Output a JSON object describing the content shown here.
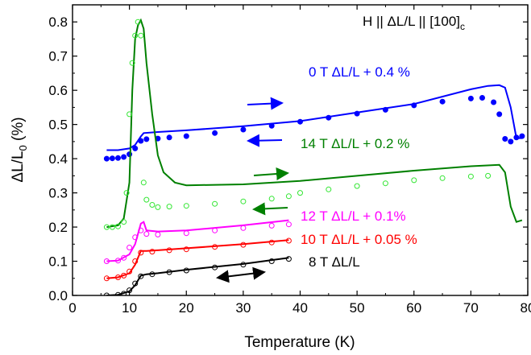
{
  "chart_data": {
    "type": "scatter",
    "xlabel": "Temperature (K)",
    "ylabel": "ΔL/L",
    "ylabel_sub": "0",
    "ylabel_unit": " (%)",
    "xlim": [
      0,
      80
    ],
    "ylim": [
      0.0,
      0.85
    ],
    "x_ticks": [
      "0",
      "10",
      "20",
      "30",
      "40",
      "50",
      "60",
      "70",
      "80"
    ],
    "y_ticks": [
      "0.0",
      "0.1",
      "0.2",
      "0.3",
      "0.4",
      "0.5",
      "0.6",
      "0.7",
      "0.8"
    ],
    "x_tick_values": [
      0,
      10,
      20,
      30,
      40,
      50,
      60,
      70,
      80
    ],
    "y_tick_values": [
      0.0,
      0.1,
      0.2,
      0.3,
      0.4,
      0.5,
      0.6,
      0.7,
      0.8
    ],
    "grid": false,
    "title_annotation": {
      "text": "H || ΔL/L || [100]",
      "sub": "c"
    },
    "series": [
      {
        "name": "0 T  ΔL/L + 0.4 %",
        "color": "#0000ff",
        "line": [
          [
            6,
            0.425
          ],
          [
            8,
            0.425
          ],
          [
            10,
            0.43
          ],
          [
            11,
            0.44
          ],
          [
            12,
            0.465
          ],
          [
            12.5,
            0.475
          ],
          [
            15,
            0.478
          ],
          [
            20,
            0.483
          ],
          [
            30,
            0.495
          ],
          [
            40,
            0.51
          ],
          [
            50,
            0.535
          ],
          [
            60,
            0.56
          ],
          [
            70,
            0.603
          ],
          [
            73,
            0.613
          ],
          [
            75,
            0.615
          ],
          [
            76,
            0.608
          ],
          [
            77,
            0.55
          ],
          [
            78,
            0.46
          ],
          [
            79,
            0.46
          ]
        ],
        "points": [
          [
            6,
            0.4
          ],
          [
            7,
            0.401
          ],
          [
            8,
            0.402
          ],
          [
            9,
            0.405
          ],
          [
            10,
            0.413
          ],
          [
            11,
            0.43
          ],
          [
            12,
            0.452
          ],
          [
            13,
            0.457
          ],
          [
            15,
            0.459
          ],
          [
            17,
            0.462
          ],
          [
            20,
            0.466
          ],
          [
            25,
            0.475
          ],
          [
            30,
            0.485
          ],
          [
            35,
            0.496
          ],
          [
            40,
            0.508
          ],
          [
            45,
            0.52
          ],
          [
            50,
            0.532
          ],
          [
            55,
            0.543
          ],
          [
            60,
            0.556
          ],
          [
            65,
            0.567
          ],
          [
            70,
            0.576
          ],
          [
            72,
            0.578
          ],
          [
            74,
            0.565
          ],
          [
            75,
            0.53
          ],
          [
            76,
            0.458
          ],
          [
            77,
            0.45
          ],
          [
            78,
            0.462
          ],
          [
            79,
            0.466
          ]
        ]
      },
      {
        "name": "14 T  ΔL/L + 0.2 %",
        "color": "#008000",
        "point_color": "#33e633",
        "line": [
          [
            6,
            0.2
          ],
          [
            8,
            0.205
          ],
          [
            9,
            0.225
          ],
          [
            10,
            0.33
          ],
          [
            10.5,
            0.6
          ],
          [
            11,
            0.75
          ],
          [
            11.5,
            0.79
          ],
          [
            12,
            0.805
          ],
          [
            12.5,
            0.78
          ],
          [
            13,
            0.68
          ],
          [
            14,
            0.53
          ],
          [
            15,
            0.41
          ],
          [
            16,
            0.36
          ],
          [
            18,
            0.33
          ],
          [
            20,
            0.322
          ],
          [
            30,
            0.325
          ],
          [
            40,
            0.335
          ],
          [
            50,
            0.35
          ],
          [
            60,
            0.365
          ],
          [
            70,
            0.378
          ],
          [
            75,
            0.382
          ],
          [
            76,
            0.36
          ],
          [
            77,
            0.26
          ],
          [
            78,
            0.215
          ],
          [
            79,
            0.22
          ]
        ],
        "points": [
          [
            6,
            0.2
          ],
          [
            7,
            0.2
          ],
          [
            8,
            0.202
          ],
          [
            9,
            0.215
          ],
          [
            9.5,
            0.3
          ],
          [
            10,
            0.53
          ],
          [
            10.5,
            0.68
          ],
          [
            11,
            0.76
          ],
          [
            11.5,
            0.8
          ],
          [
            12,
            0.76
          ],
          [
            12.5,
            0.33
          ],
          [
            13,
            0.28
          ],
          [
            14,
            0.265
          ],
          [
            15,
            0.258
          ],
          [
            17,
            0.26
          ],
          [
            20,
            0.262
          ],
          [
            25,
            0.268
          ],
          [
            30,
            0.275
          ],
          [
            35,
            0.283
          ],
          [
            38,
            0.29
          ],
          [
            40,
            0.3
          ],
          [
            45,
            0.31
          ],
          [
            50,
            0.32
          ],
          [
            55,
            0.328
          ],
          [
            60,
            0.337
          ],
          [
            65,
            0.343
          ],
          [
            70,
            0.348
          ],
          [
            73,
            0.35
          ]
        ]
      },
      {
        "name": "12 T  ΔL/L + 0.1%",
        "color": "#ff00ff",
        "line": [
          [
            6,
            0.1
          ],
          [
            8,
            0.102
          ],
          [
            10,
            0.12
          ],
          [
            11,
            0.15
          ],
          [
            12,
            0.21
          ],
          [
            12.5,
            0.215
          ],
          [
            13,
            0.19
          ],
          [
            15,
            0.187
          ],
          [
            20,
            0.19
          ],
          [
            30,
            0.205
          ],
          [
            38,
            0.22
          ]
        ],
        "points": [
          [
            6,
            0.1
          ],
          [
            8,
            0.102
          ],
          [
            9,
            0.11
          ],
          [
            10,
            0.14
          ],
          [
            11,
            0.17
          ],
          [
            12,
            0.19
          ],
          [
            13,
            0.18
          ],
          [
            15,
            0.178
          ],
          [
            20,
            0.182
          ],
          [
            25,
            0.19
          ],
          [
            30,
            0.197
          ],
          [
            35,
            0.204
          ],
          [
            38,
            0.208
          ]
        ]
      },
      {
        "name": "10 T  ΔL/L + 0.05 %",
        "color": "#ff0000",
        "line": [
          [
            6,
            0.05
          ],
          [
            8,
            0.053
          ],
          [
            10,
            0.065
          ],
          [
            11,
            0.09
          ],
          [
            12,
            0.13
          ],
          [
            13,
            0.13
          ],
          [
            15,
            0.132
          ],
          [
            20,
            0.138
          ],
          [
            30,
            0.15
          ],
          [
            38,
            0.162
          ]
        ],
        "points": [
          [
            6,
            0.05
          ],
          [
            8,
            0.053
          ],
          [
            9,
            0.058
          ],
          [
            10,
            0.07
          ],
          [
            11,
            0.1
          ],
          [
            12,
            0.125
          ],
          [
            14,
            0.128
          ],
          [
            17,
            0.132
          ],
          [
            20,
            0.135
          ],
          [
            25,
            0.142
          ],
          [
            30,
            0.148
          ],
          [
            35,
            0.155
          ],
          [
            38,
            0.16
          ]
        ]
      },
      {
        "name": "8 T  ΔL/L",
        "color": "#000000",
        "line": [
          [
            6,
            0.0
          ],
          [
            8,
            0.002
          ],
          [
            10,
            0.012
          ],
          [
            11,
            0.03
          ],
          [
            12,
            0.058
          ],
          [
            13,
            0.062
          ],
          [
            15,
            0.065
          ],
          [
            20,
            0.075
          ],
          [
            30,
            0.092
          ],
          [
            38,
            0.11
          ]
        ],
        "points": [
          [
            6,
            0.0
          ],
          [
            8,
            0.002
          ],
          [
            9,
            0.005
          ],
          [
            10,
            0.015
          ],
          [
            11,
            0.035
          ],
          [
            12,
            0.056
          ],
          [
            14,
            0.062
          ],
          [
            17,
            0.068
          ],
          [
            20,
            0.073
          ],
          [
            25,
            0.082
          ],
          [
            30,
            0.09
          ],
          [
            35,
            0.1
          ],
          [
            38,
            0.107
          ]
        ]
      }
    ]
  }
}
